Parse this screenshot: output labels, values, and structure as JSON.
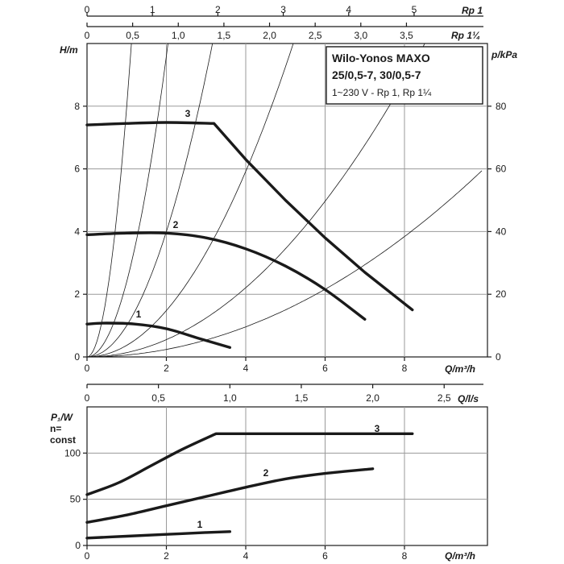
{
  "header_label": "1",
  "info_box": {
    "title_line1": "Wilo-Yonos MAXO",
    "title_line2": "25/0,5-7, 30/0,5-7",
    "subtitle": "1~230 V - Rp 1, Rp 1¼"
  },
  "chart_data": [
    {
      "type": "line",
      "name": "head-curve",
      "xlabel": "Q/m³/h",
      "ylabel": "H/m",
      "y2label": "p/kPa",
      "top_axis_1": {
        "label": "Rp 1",
        "ticks": [
          "0",
          "1",
          "2",
          "3",
          "4",
          "5"
        ],
        "unit_per_m3h": 0.6066
      },
      "top_axis_2": {
        "label": "Rp 1¼",
        "ticks": [
          "0",
          "0,5",
          "1,0",
          "1,5",
          "2,0",
          "2,5",
          "3,0",
          "3,5"
        ],
        "unit_per_m3h": 0.4348
      },
      "xlim": [
        0,
        10
      ],
      "ylim": [
        0,
        10
      ],
      "y2lim": [
        0,
        100
      ],
      "xticks": [
        "0",
        "2",
        "4",
        "6",
        "8"
      ],
      "yticks": [
        "0",
        "2",
        "4",
        "6",
        "8"
      ],
      "y2ticks": [
        "0",
        "20",
        "40",
        "60",
        "80"
      ],
      "grid": true,
      "series": [
        {
          "name": "1",
          "x": [
            0,
            0.5,
            1.2,
            2.0,
            2.8,
            3.6
          ],
          "y": [
            1.05,
            1.08,
            1.05,
            0.9,
            0.6,
            0.3
          ]
        },
        {
          "name": "2",
          "x": [
            0,
            1.0,
            2.0,
            3.0,
            4.0,
            5.0,
            6.0,
            7.0
          ],
          "y": [
            3.9,
            3.95,
            3.95,
            3.8,
            3.45,
            2.9,
            2.15,
            1.2
          ]
        },
        {
          "name": "3",
          "x": [
            0,
            1.0,
            2.0,
            3.2,
            4.0,
            5.0,
            6.0,
            7.0,
            8.2
          ],
          "y": [
            7.4,
            7.45,
            7.48,
            7.45,
            6.3,
            5.0,
            3.8,
            2.7,
            1.5
          ]
        }
      ],
      "system_curves_k": [
        8.0,
        2.4,
        1.0,
        0.37,
        0.138,
        0.06
      ]
    },
    {
      "type": "line",
      "name": "power-curve",
      "xlabel": "Q/m³/h",
      "ylabel_line1": "P₁/W",
      "ylabel_line2": "n=",
      "ylabel_line3": "const",
      "top_axis": {
        "label": "Q/l/s",
        "ticks": [
          "0",
          "0,5",
          "1,0",
          "1,5",
          "2,0",
          "2,5"
        ]
      },
      "xlim": [
        0,
        10
      ],
      "ylim": [
        0,
        150
      ],
      "xticks": [
        "0",
        "2",
        "4",
        "6",
        "8"
      ],
      "yticks": [
        "0",
        "50",
        "100"
      ],
      "grid": true,
      "series": [
        {
          "name": "1",
          "x": [
            0,
            1.0,
            2.0,
            3.0,
            3.6
          ],
          "y": [
            8,
            10,
            12,
            14,
            15
          ]
        },
        {
          "name": "2",
          "x": [
            0,
            1.0,
            2.0,
            3.0,
            4.0,
            5.0,
            6.0,
            7.2
          ],
          "y": [
            25,
            33,
            43,
            53,
            63,
            72,
            78,
            83
          ]
        },
        {
          "name": "3",
          "x": [
            0,
            0.8,
            1.6,
            2.4,
            3.25,
            5.0,
            8.2
          ],
          "y": [
            55,
            68,
            86,
            104,
            121,
            121,
            121
          ]
        }
      ]
    }
  ]
}
